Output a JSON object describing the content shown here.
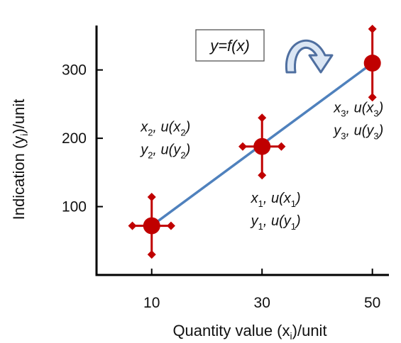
{
  "chart_data": {
    "type": "scatter",
    "title": "",
    "xlabel": "Quantity value (x",
    "xlabel_sub": "i",
    "xlabel_suffix": ")/unit",
    "ylabel": "Indication (y",
    "ylabel_sub": "i",
    "ylabel_suffix": ")/unit",
    "x_ticks": [
      10,
      30,
      50
    ],
    "y_ticks": [
      100,
      200,
      300
    ],
    "xlim": [
      0,
      53
    ],
    "ylim": [
      0,
      365
    ],
    "grid": false,
    "colors": {
      "marker": "#c00000",
      "line": "#4f81bd",
      "arrow": "#4f6fa0",
      "axis": "#000000"
    },
    "points": [
      {
        "x": 10,
        "y": 72,
        "ux": 3.5,
        "uy": 42
      },
      {
        "x": 30,
        "y": 188,
        "ux": 3.5,
        "uy": 42
      },
      {
        "x": 50,
        "y": 310,
        "ux": 0.6,
        "uy": 50
      }
    ],
    "fit_line": {
      "x": [
        10,
        50
      ],
      "y": [
        72,
        310
      ]
    },
    "function_label": "y=f(x)",
    "arrow_icon": "curved-arrow-icon",
    "annotations": [
      {
        "x": 8,
        "y": 210,
        "line1": "x",
        "sub1": "2",
        "rest1": ", u(x",
        "subb1": "2",
        "end1": ")",
        "line2": "y",
        "sub2": "2",
        "rest2": ", u(y",
        "subb2": "2",
        "end2": ")"
      },
      {
        "x": 28,
        "y": 106,
        "line1": "x",
        "sub1": "1",
        "rest1": ", u(x",
        "subb1": "1",
        "end1": ")",
        "line2": "y",
        "sub2": "1",
        "rest2": ", u(y",
        "subb2": "1",
        "end2": ")"
      },
      {
        "x": 43,
        "y": 238,
        "line1": "x",
        "sub1": "3",
        "rest1": ", u(x",
        "subb1": "3",
        "end1": ")",
        "line2": "y",
        "sub2": "3",
        "rest2": ", u(y",
        "subb2": "3",
        "end2": ")"
      }
    ]
  }
}
